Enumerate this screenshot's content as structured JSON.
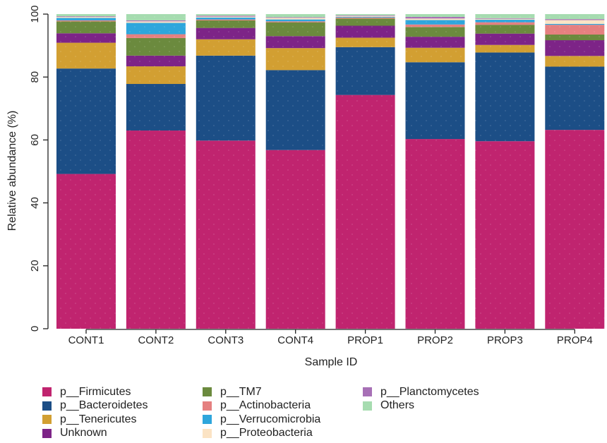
{
  "chart_data": {
    "type": "bar",
    "stacked": true,
    "xlabel": "Sample ID",
    "ylabel": "Relative abundance (%)",
    "ylim": [
      0,
      100
    ],
    "yticks": [
      0,
      20,
      40,
      60,
      80,
      100
    ],
    "categories": [
      "CONT1",
      "CONT2",
      "CONT3",
      "CONT4",
      "PROP1",
      "PROP2",
      "PROP3",
      "PROP4"
    ],
    "series": [
      {
        "name": "p__Firmicutes",
        "color": "#c0246f",
        "values": [
          49.2,
          63.0,
          59.8,
          56.8,
          74.3,
          60.3,
          59.6,
          63.2
        ]
      },
      {
        "name": "p__Bacteroidetes",
        "color": "#1c4e86",
        "values": [
          33.5,
          14.8,
          27.0,
          25.4,
          15.2,
          24.4,
          28.2,
          20.1
        ]
      },
      {
        "name": "p__Tenericutes",
        "color": "#d29f32",
        "values": [
          8.2,
          5.6,
          5.2,
          7.0,
          3.0,
          4.6,
          2.4,
          3.4
        ]
      },
      {
        "name": "Unknown",
        "color": "#7d2487",
        "values": [
          3.0,
          3.4,
          3.6,
          3.8,
          3.8,
          3.5,
          3.6,
          5.0
        ]
      },
      {
        "name": "p__TM7",
        "color": "#6b8a3e",
        "values": [
          3.8,
          5.6,
          2.4,
          4.4,
          2.3,
          3.1,
          2.8,
          1.8
        ]
      },
      {
        "name": "p__Actinobacteria",
        "color": "#e58080",
        "values": [
          0.3,
          1.2,
          0.3,
          0.3,
          0.3,
          0.8,
          0.8,
          3.1
        ]
      },
      {
        "name": "p__Verrucomicrobia",
        "color": "#2ea6dc",
        "values": [
          0.8,
          3.6,
          0.6,
          0.6,
          0.2,
          1.4,
          0.8,
          0.3
        ]
      },
      {
        "name": "p__Proteobacteria",
        "color": "#fbe3c4",
        "values": [
          0.3,
          0.5,
          0.3,
          0.5,
          0.3,
          0.5,
          0.3,
          1.2
        ]
      },
      {
        "name": "p__Planctomycetes",
        "color": "#a770b6",
        "values": [
          0.2,
          0.3,
          0.3,
          0.2,
          0.2,
          0.5,
          0.2,
          0.3
        ]
      },
      {
        "name": "Others",
        "color": "#a6dcb0",
        "values": [
          0.7,
          2.0,
          0.5,
          1.0,
          0.4,
          0.9,
          1.3,
          1.6
        ]
      }
    ],
    "legend_position": "bottom",
    "grid": false
  }
}
